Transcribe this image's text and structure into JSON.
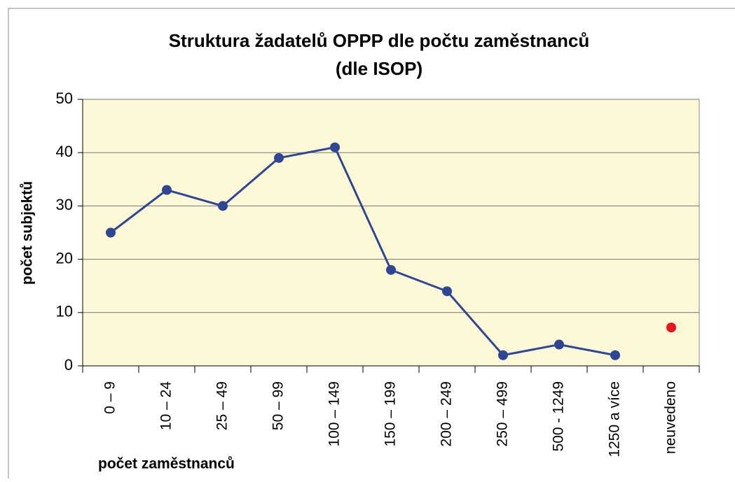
{
  "chart_data": {
    "type": "line",
    "title": [
      "Struktura žadatelů OPPP dle počtu zaměstnanců",
      "(dle ISOP)"
    ],
    "x_label": "počet zaměstnanců",
    "y_label": "počet subjektů",
    "categories": [
      "0 – 9",
      "10 – 24",
      "25 – 49",
      "50 – 99",
      "100 – 149",
      "150 – 199",
      "200 – 249",
      "250 – 499",
      "500 - 1249",
      "1250 a více",
      "neuvedeno"
    ],
    "series": [
      {
        "color": "#2f4694",
        "values": [
          25,
          33,
          30,
          39,
          41,
          18,
          14,
          2,
          4,
          2,
          null
        ]
      },
      {
        "color": "#e8141e",
        "values": [
          null,
          null,
          null,
          null,
          null,
          null,
          null,
          null,
          null,
          null,
          7.2
        ]
      }
    ],
    "ylim": [
      0,
      50
    ],
    "yticks": [
      0,
      10,
      20,
      30,
      40,
      50
    ],
    "grid": true,
    "plot_background": "#fdf8d6"
  }
}
